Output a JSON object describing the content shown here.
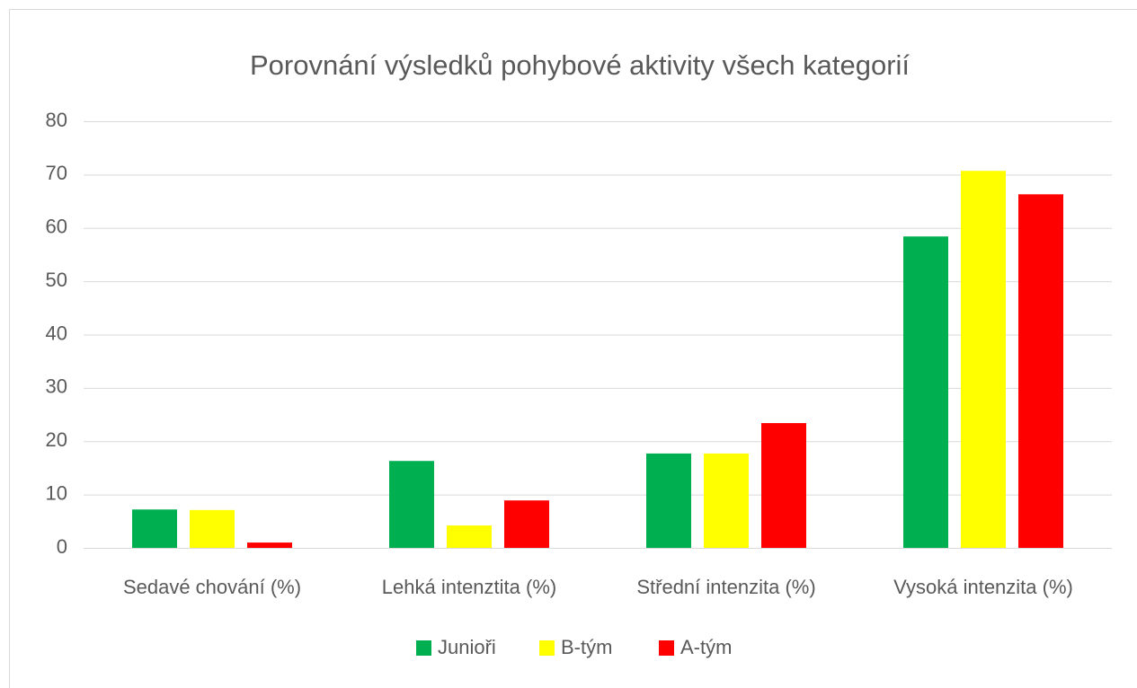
{
  "chart_data": {
    "type": "bar",
    "title": "Porovnání výsledků pohybové aktivity všech kategorií",
    "categories": [
      "Sedavé chování (%)",
      "Lehká intenztita (%)",
      "Střední intenzita (%)",
      "Vysoká intenzita (%)"
    ],
    "series": [
      {
        "name": "Junioři",
        "color": "#00b050",
        "values": [
          7.2,
          16.3,
          17.7,
          58.4
        ]
      },
      {
        "name": "B-tým",
        "color": "#ffff00",
        "values": [
          7.1,
          4.2,
          17.7,
          70.7
        ]
      },
      {
        "name": "A-tým",
        "color": "#ff0000",
        "values": [
          1.0,
          8.9,
          23.4,
          66.3
        ]
      }
    ],
    "ylim": [
      0,
      80
    ],
    "yticks": [
      0,
      10,
      20,
      30,
      40,
      50,
      60,
      70,
      80
    ],
    "grid": true,
    "legend": "bottom"
  }
}
